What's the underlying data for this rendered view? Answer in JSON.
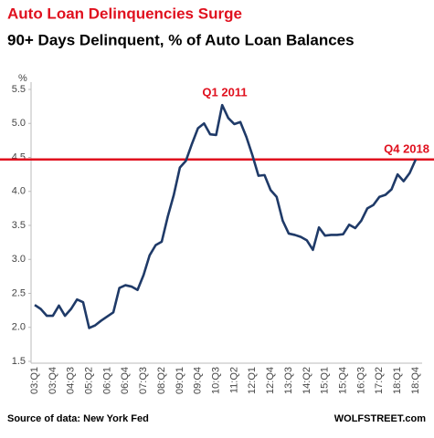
{
  "chart_data": {
    "type": "line",
    "title": "Auto Loan Delinquencies Surge",
    "subtitle": "90+ Days Delinquent, % of Auto Loan Balances",
    "y_label": "%",
    "annotations": [
      "Q1 2011",
      "Q4 2018"
    ],
    "source": "Source of data: New York Fed",
    "credit": "WOLFSTREET.com",
    "categories": [
      "03:Q1",
      null,
      null,
      "03:Q4",
      null,
      null,
      "04:Q3",
      null,
      null,
      "05:Q2",
      null,
      null,
      "06:Q1",
      null,
      null,
      "06:Q4",
      null,
      null,
      "07:Q3",
      null,
      null,
      "08:Q2",
      null,
      null,
      "09:Q1",
      null,
      null,
      "09:Q4",
      null,
      null,
      "10:Q3",
      null,
      null,
      "11:Q2",
      null,
      null,
      "12:Q1",
      null,
      null,
      "12:Q4",
      null,
      null,
      "13:Q3",
      null,
      null,
      "14:Q2",
      null,
      null,
      "15:Q1",
      null,
      null,
      "15:Q4",
      null,
      null,
      "16:Q3",
      null,
      null,
      "17:Q2",
      null,
      null,
      "18:Q1",
      null,
      null,
      "18:Q4"
    ],
    "values": [
      2.33,
      2.27,
      2.17,
      2.17,
      2.32,
      2.17,
      2.27,
      2.41,
      2.37,
      1.99,
      2.03,
      2.1,
      2.16,
      2.22,
      2.58,
      2.62,
      2.6,
      2.55,
      2.77,
      3.06,
      3.21,
      3.26,
      3.63,
      3.95,
      4.35,
      4.45,
      4.7,
      4.93,
      5.0,
      4.84,
      4.83,
      5.27,
      5.08,
      4.99,
      5.02,
      4.8,
      4.53,
      4.23,
      4.24,
      4.02,
      3.92,
      3.57,
      3.38,
      3.36,
      3.33,
      3.28,
      3.14,
      3.47,
      3.35,
      3.36,
      3.36,
      3.37,
      3.51,
      3.46,
      3.57,
      3.75,
      3.8,
      3.92,
      3.95,
      4.03,
      4.25,
      4.15,
      4.27,
      4.47
    ],
    "color": "#1f3a68",
    "hline": 4.47,
    "hline_color": "#e0101e",
    "ylim": [
      1.5,
      5.5
    ],
    "yticks": [
      1.5,
      {
        "value": 2,
        "label": "2.0"
      },
      2.5,
      {
        "value": 3,
        "label": "3.0"
      },
      3.5,
      {
        "value": 4,
        "label": "4.0"
      },
      4.5,
      {
        "value": 5,
        "label": "5.0"
      },
      5.5
    ],
    "grid": false
  }
}
